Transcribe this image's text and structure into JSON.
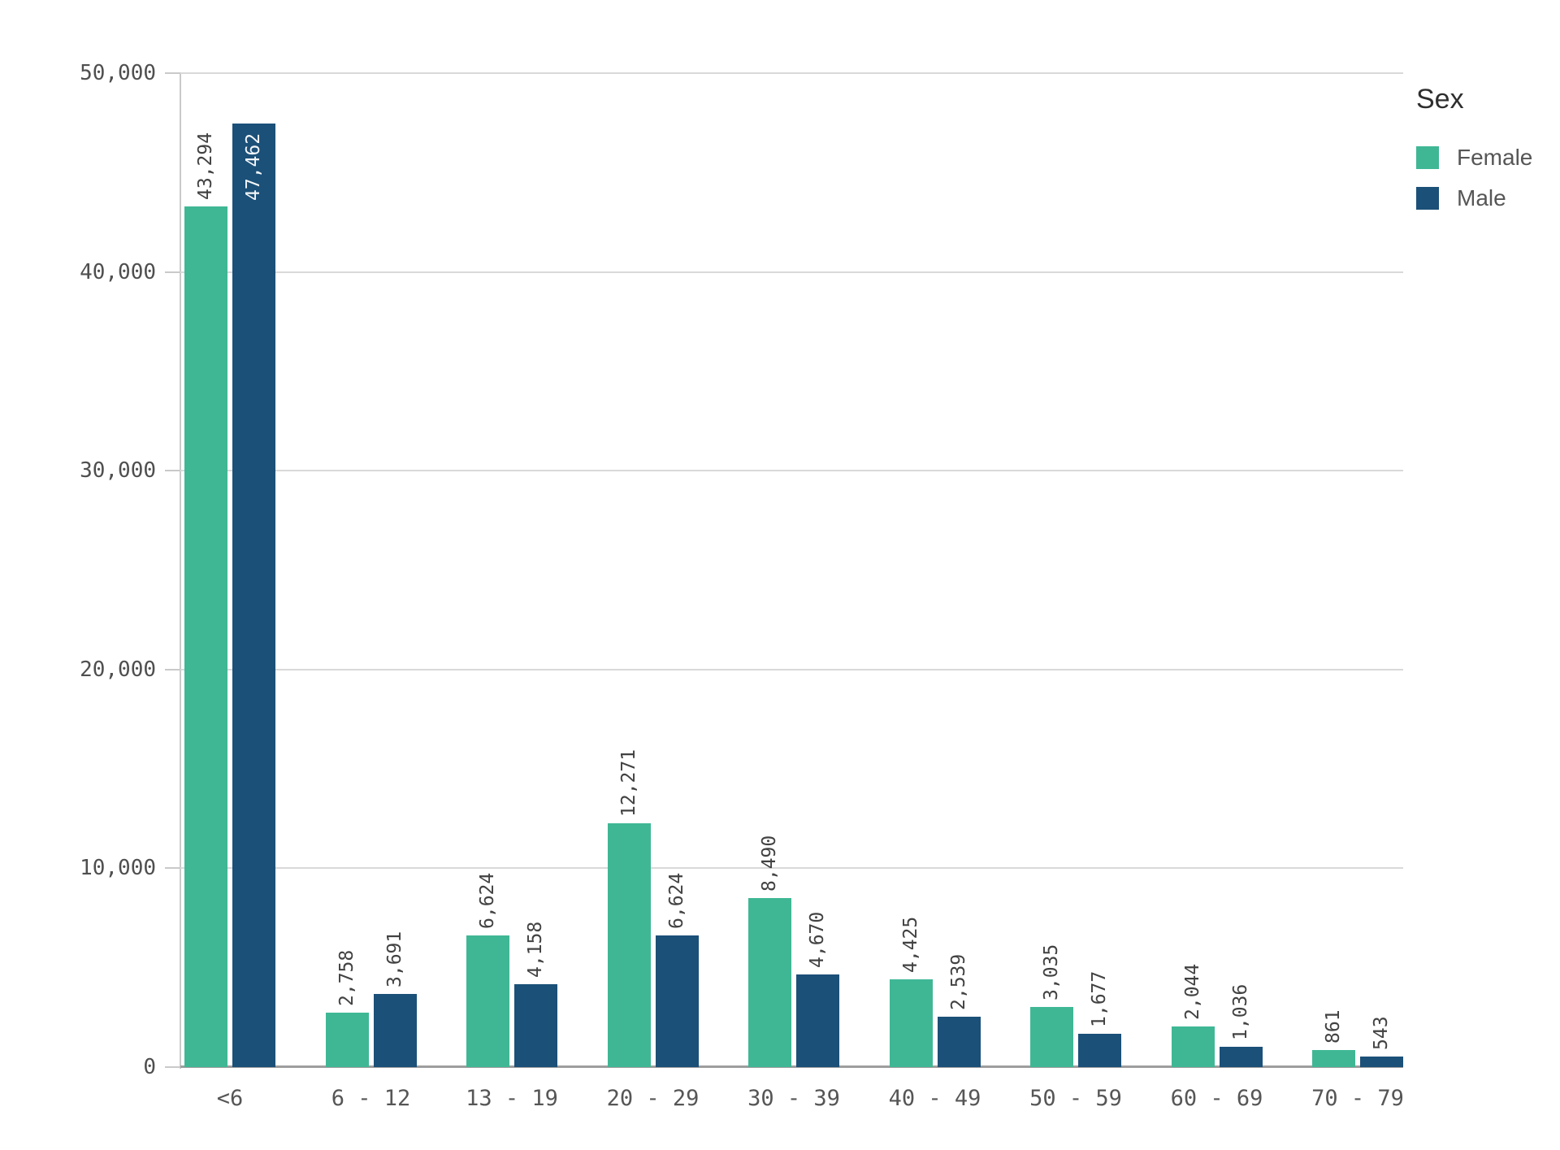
{
  "chart_data": {
    "type": "bar",
    "title": "",
    "xlabel": "",
    "ylabel": "",
    "categories": [
      "<6",
      "6 - 12",
      "13 - 19",
      "20 - 29",
      "30 - 39",
      "40 - 49",
      "50 - 59",
      "60 - 69",
      "70 - 79"
    ],
    "series": [
      {
        "name": "Female",
        "color": "#3fb795",
        "values": [
          43294,
          2758,
          6624,
          12271,
          8490,
          4425,
          3035,
          2044,
          861
        ],
        "labels": [
          "43,294",
          "2,758",
          "6,624",
          "12,271",
          "8,490",
          "4,425",
          "3,035",
          "2,044",
          "861"
        ]
      },
      {
        "name": "Male",
        "color": "#1b5078",
        "values": [
          47462,
          3691,
          4158,
          6624,
          4670,
          2539,
          1677,
          1036,
          543
        ],
        "labels": [
          "47,462",
          "3,691",
          "4,158",
          "6,624",
          "4,670",
          "2,539",
          "1,677",
          "1,036",
          "543"
        ]
      }
    ],
    "ylim": [
      0,
      50000
    ],
    "ytick_interval": 10000,
    "yticks": [
      "0",
      "10,000",
      "20,000",
      "30,000",
      "40,000",
      "50,000"
    ],
    "grid": true,
    "value_label_rotation": -90,
    "legend_position": "top-right"
  },
  "legend": {
    "title": "Sex",
    "items": [
      {
        "label": "Female",
        "color": "#3fb795"
      },
      {
        "label": "Male",
        "color": "#1b5078"
      }
    ]
  },
  "colors": {
    "background": "#ffffff",
    "gridline": "#d9d9d9",
    "axis_line": "#c9c9c9",
    "baseline": "#9e9e9e",
    "tick_text": "#4f4f4f",
    "bar_label_text": "#424242",
    "bar_label_text_inside": "#f2f6f9"
  }
}
